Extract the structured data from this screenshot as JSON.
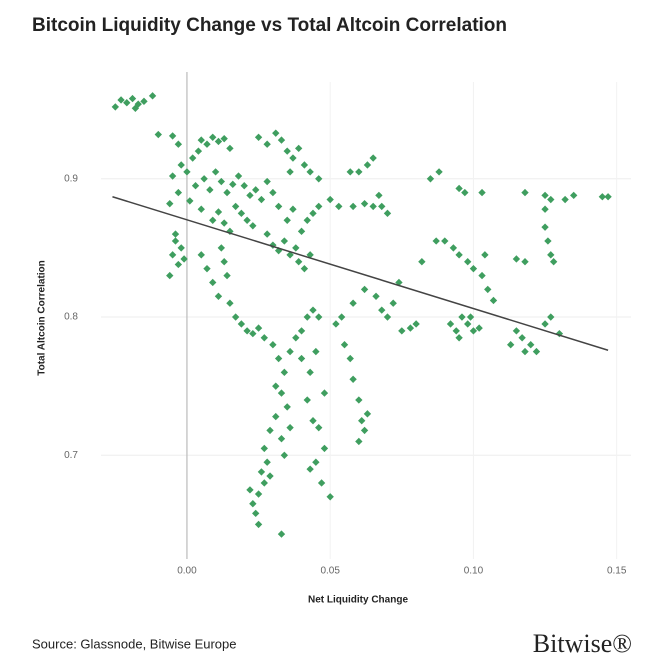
{
  "chart_data": {
    "type": "scatter",
    "title": "Bitcoin Liquidity Change vs Total Altcoin Correlation",
    "xlabel": "Net Liquidity Change",
    "ylabel": "Total Altcoin Correlation",
    "source": "Source: Glassnode, Bitwise Europe",
    "brand": "Bitwise®",
    "color": "#3f9e5f",
    "trend_color": "#444444",
    "grid": true,
    "xlim": [
      -0.03,
      0.155
    ],
    "ylim": [
      0.625,
      0.97
    ],
    "xticks": [
      {
        "value": 0,
        "label": "0.00"
      },
      {
        "value": 0.05,
        "label": "0.05"
      },
      {
        "value": 0.1,
        "label": "0.10"
      },
      {
        "value": 0.15,
        "label": "0.15"
      }
    ],
    "yticks": [
      0.7,
      0.8,
      0.9
    ],
    "trend_line": {
      "x": [
        -0.026,
        0.147
      ],
      "y": [
        0.887,
        0.776
      ]
    },
    "x": [
      -0.025,
      -0.023,
      -0.021,
      -0.019,
      -0.017,
      -0.015,
      -0.012,
      -0.018,
      -0.01,
      -0.005,
      -0.003,
      0.0,
      0.002,
      0.004,
      0.005,
      0.007,
      0.009,
      0.011,
      0.013,
      0.015,
      0.003,
      0.006,
      0.008,
      0.01,
      0.012,
      0.014,
      0.016,
      0.018,
      0.02,
      0.022,
      0.024,
      0.026,
      0.028,
      0.03,
      0.032,
      0.017,
      0.019,
      0.021,
      0.023,
      0.009,
      0.011,
      0.013,
      0.015,
      0.005,
      0.001,
      -0.003,
      -0.005,
      -0.002,
      -0.006,
      -0.004,
      -0.002,
      -0.005,
      -0.003,
      -0.006,
      -0.001,
      -0.004,
      0.025,
      0.028,
      0.031,
      0.033,
      0.035,
      0.037,
      0.039,
      0.041,
      0.043,
      0.046,
      0.036,
      0.028,
      0.03,
      0.032,
      0.034,
      0.036,
      0.038,
      0.04,
      0.042,
      0.044,
      0.046,
      0.039,
      0.041,
      0.043,
      0.035,
      0.037,
      0.005,
      0.007,
      0.009,
      0.011,
      0.013,
      0.015,
      0.017,
      0.019,
      0.021,
      0.023,
      0.025,
      0.027,
      0.014,
      0.012,
      0.03,
      0.032,
      0.034,
      0.036,
      0.038,
      0.04,
      0.042,
      0.044,
      0.046,
      0.031,
      0.033,
      0.035,
      0.031,
      0.029,
      0.033,
      0.027,
      0.028,
      0.026,
      0.027,
      0.025,
      0.023,
      0.024,
      0.025,
      0.022,
      0.029,
      0.033,
      0.034,
      0.036,
      0.04,
      0.043,
      0.045,
      0.042,
      0.044,
      0.046,
      0.048,
      0.045,
      0.043,
      0.047,
      0.05,
      0.048,
      0.055,
      0.057,
      0.058,
      0.06,
      0.061,
      0.062,
      0.063,
      0.06,
      0.052,
      0.054,
      0.058,
      0.062,
      0.05,
      0.053,
      0.057,
      0.06,
      0.063,
      0.065,
      0.058,
      0.062,
      0.065,
      0.068,
      0.07,
      0.067,
      0.066,
      0.068,
      0.07,
      0.072,
      0.075,
      0.078,
      0.074,
      0.08,
      0.082,
      0.085,
      0.088,
      0.087,
      0.092,
      0.094,
      0.096,
      0.098,
      0.1,
      0.102,
      0.095,
      0.099,
      0.095,
      0.098,
      0.1,
      0.103,
      0.105,
      0.107,
      0.104,
      0.093,
      0.09,
      0.095,
      0.097,
      0.103,
      0.118,
      0.125,
      0.127,
      0.132,
      0.135,
      0.145,
      0.147,
      0.115,
      0.117,
      0.118,
      0.12,
      0.122,
      0.125,
      0.127,
      0.13,
      0.113,
      0.125,
      0.126,
      0.127,
      0.128,
      0.118,
      0.115,
      0.125
    ],
    "values": [
      0.952,
      0.957,
      0.955,
      0.958,
      0.954,
      0.956,
      0.96,
      0.951,
      0.932,
      0.931,
      0.925,
      0.905,
      0.915,
      0.92,
      0.928,
      0.925,
      0.93,
      0.927,
      0.929,
      0.922,
      0.895,
      0.9,
      0.892,
      0.905,
      0.898,
      0.89,
      0.896,
      0.902,
      0.895,
      0.888,
      0.892,
      0.885,
      0.898,
      0.89,
      0.88,
      0.88,
      0.875,
      0.87,
      0.866,
      0.87,
      0.876,
      0.868,
      0.862,
      0.878,
      0.884,
      0.89,
      0.902,
      0.91,
      0.882,
      0.86,
      0.85,
      0.845,
      0.838,
      0.83,
      0.842,
      0.855,
      0.93,
      0.925,
      0.933,
      0.928,
      0.92,
      0.915,
      0.922,
      0.91,
      0.905,
      0.9,
      0.905,
      0.86,
      0.852,
      0.848,
      0.855,
      0.845,
      0.85,
      0.862,
      0.87,
      0.875,
      0.88,
      0.84,
      0.835,
      0.845,
      0.87,
      0.878,
      0.845,
      0.835,
      0.825,
      0.815,
      0.84,
      0.81,
      0.8,
      0.795,
      0.79,
      0.788,
      0.792,
      0.785,
      0.83,
      0.85,
      0.78,
      0.77,
      0.76,
      0.775,
      0.785,
      0.79,
      0.8,
      0.805,
      0.8,
      0.75,
      0.745,
      0.735,
      0.728,
      0.718,
      0.712,
      0.705,
      0.695,
      0.688,
      0.68,
      0.672,
      0.665,
      0.658,
      0.65,
      0.675,
      0.685,
      0.643,
      0.7,
      0.72,
      0.77,
      0.76,
      0.775,
      0.74,
      0.725,
      0.72,
      0.705,
      0.695,
      0.69,
      0.68,
      0.67,
      0.745,
      0.78,
      0.77,
      0.755,
      0.74,
      0.725,
      0.718,
      0.73,
      0.71,
      0.795,
      0.8,
      0.81,
      0.82,
      0.885,
      0.88,
      0.905,
      0.905,
      0.91,
      0.915,
      0.88,
      0.882,
      0.88,
      0.88,
      0.875,
      0.888,
      0.815,
      0.805,
      0.8,
      0.81,
      0.79,
      0.792,
      0.825,
      0.795,
      0.84,
      0.9,
      0.905,
      0.855,
      0.795,
      0.79,
      0.8,
      0.795,
      0.79,
      0.792,
      0.785,
      0.8,
      0.845,
      0.84,
      0.835,
      0.83,
      0.82,
      0.812,
      0.845,
      0.85,
      0.855,
      0.893,
      0.89,
      0.89,
      0.89,
      0.888,
      0.885,
      0.885,
      0.888,
      0.887,
      0.887,
      0.79,
      0.785,
      0.775,
      0.78,
      0.775,
      0.795,
      0.8,
      0.788,
      0.78,
      0.865,
      0.855,
      0.845,
      0.84,
      0.84,
      0.842,
      0.878
    ]
  }
}
